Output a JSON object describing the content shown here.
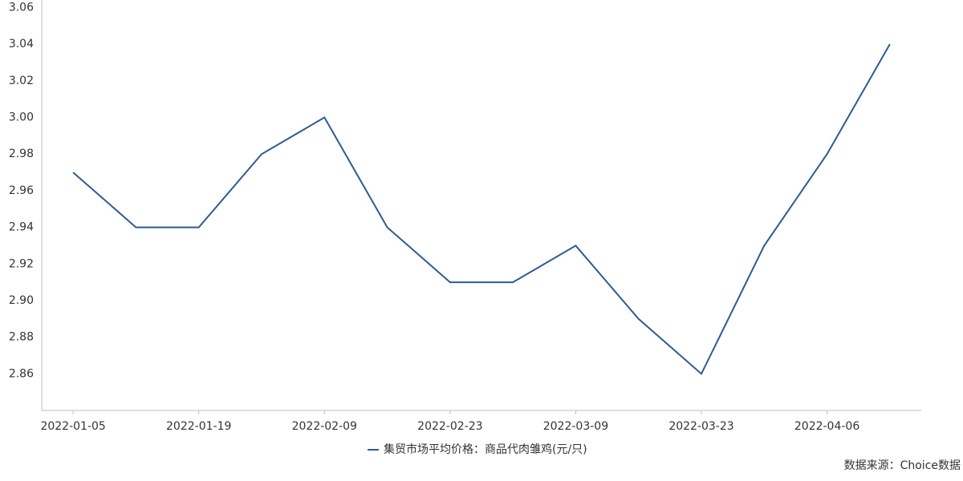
{
  "chart_data": {
    "type": "line",
    "categories": [
      "2022-01-05",
      null,
      "2022-01-19",
      null,
      "2022-02-09",
      null,
      "2022-02-23",
      null,
      "2022-03-09",
      null,
      "2022-03-23",
      null,
      "2022-04-06",
      null
    ],
    "series": [
      {
        "name": "集贸市场平均价格：商品代肉雏鸡(元/只)",
        "color": "#2e5b8f",
        "values": [
          2.97,
          2.94,
          2.94,
          2.98,
          3.0,
          2.94,
          2.91,
          2.91,
          2.93,
          2.89,
          2.86,
          2.93,
          2.98,
          3.04
        ]
      }
    ],
    "ylim": [
      2.84,
      3.06
    ],
    "yticks": [
      2.86,
      2.88,
      {
        "value": 2.9,
        "label": "2.90"
      },
      2.92,
      2.94,
      2.96,
      2.98,
      {
        "value": 3.0,
        "label": "3.00"
      },
      3.02,
      3.04,
      3.06
    ],
    "grid": false,
    "source": "数据来源：Choice数据"
  }
}
